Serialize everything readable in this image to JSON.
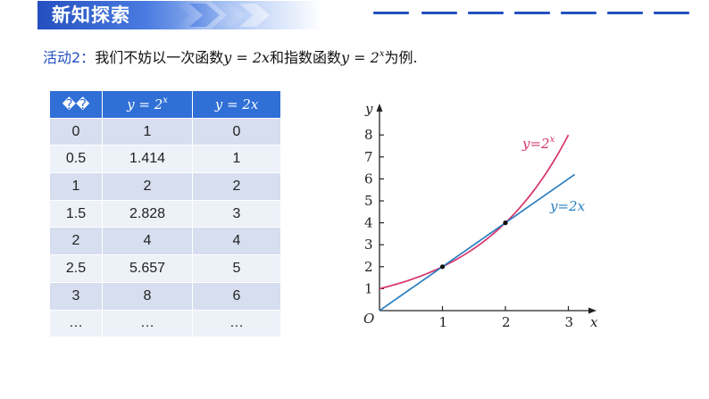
{
  "header": {
    "title": "新知探索",
    "accent_color": "#2450c0",
    "decor": "blue-dash-line"
  },
  "activity": {
    "label": "活动2：",
    "intro": "我们不妨以一次函数",
    "f1": "y = 2x",
    "mid": "和指数函数",
    "f2_base": "y = 2",
    "f2_exp": "x",
    "outro": "为例."
  },
  "table": {
    "headers": [
      "��",
      "y = 2",
      "y = 2x"
    ],
    "header_exp": "x",
    "rows": [
      [
        "0",
        "1",
        "0"
      ],
      [
        "0.5",
        "1.414",
        "1"
      ],
      [
        "1",
        "2",
        "2"
      ],
      [
        "1.5",
        "2.828",
        "3"
      ],
      [
        "2",
        "4",
        "4"
      ],
      [
        "2.5",
        "5.657",
        "5"
      ],
      [
        "3",
        "8",
        "6"
      ],
      [
        "…",
        "…",
        "…"
      ]
    ]
  },
  "chart_data": {
    "type": "line",
    "x_axis_label": "x",
    "y_axis_label": "y",
    "origin_label": "O",
    "xlim": [
      0,
      3.3
    ],
    "ylim": [
      0,
      9
    ],
    "x_ticks": [
      "1",
      "2",
      "3"
    ],
    "y_ticks": [
      "1",
      "2",
      "3",
      "4",
      "5",
      "6",
      "7",
      "8"
    ],
    "series": [
      {
        "name": "y=2^x",
        "label_base": "y=2",
        "label_exp": "x",
        "color": "#d6336c",
        "x_range": [
          0,
          3
        ],
        "formula": "2^x"
      },
      {
        "name": "y=2x",
        "label": "y=2x",
        "color": "#2a7fc0",
        "x_range": [
          0,
          3.1
        ],
        "formula": "2x"
      }
    ],
    "intersection_points": [
      [
        1,
        2
      ],
      [
        2,
        4
      ]
    ]
  }
}
